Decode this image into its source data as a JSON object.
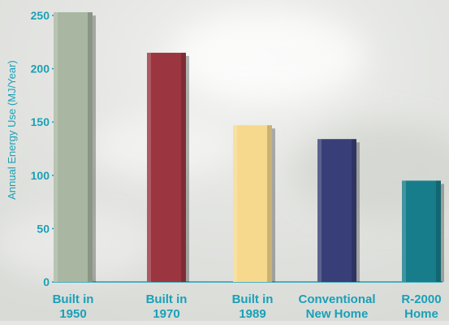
{
  "chart_data": {
    "type": "bar",
    "title": "",
    "xlabel": "",
    "ylabel": "Annual Energy Use (MJ/Year)",
    "ylim": [
      0,
      250
    ],
    "yticks": [
      0,
      50,
      100,
      150,
      200,
      250
    ],
    "categories": [
      [
        "Built in",
        "1950"
      ],
      [
        "Built in",
        "1970"
      ],
      [
        "Built in",
        "1989"
      ],
      [
        "Conventional",
        "New Home"
      ],
      [
        "R-2000",
        "Home"
      ]
    ],
    "values": [
      253,
      215,
      147,
      134,
      95
    ],
    "bar_colors": [
      "#a9b7a2",
      "#9b3640",
      "#f7d98d",
      "#383f78",
      "#177d8a"
    ],
    "grid": false,
    "legend": "none"
  },
  "colors": {
    "label_text": "#1aa0b7",
    "axis_line": "#1aa0b7"
  }
}
